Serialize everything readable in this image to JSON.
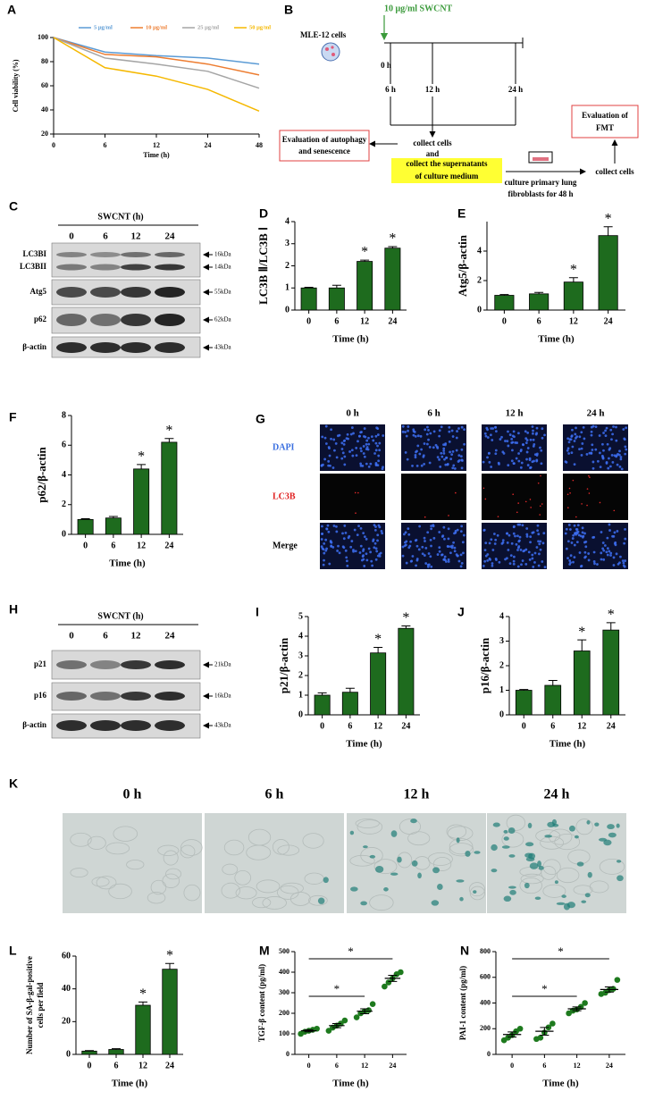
{
  "chart_data": [
    {
      "type": "line",
      "label": "A",
      "x_label": "Time (h)",
      "y_label": "Cell viability (%)",
      "categories": [
        "0",
        "6",
        "12",
        "24",
        "48"
      ],
      "series": [
        {
          "name": "5 μg/ml",
          "color": "#5b9bd5",
          "values": [
            100,
            88,
            85,
            83,
            78
          ]
        },
        {
          "name": "10 μg/ml",
          "color": "#ed7d31",
          "values": [
            100,
            86,
            84,
            78,
            69
          ]
        },
        {
          "name": "25 μg/ml",
          "color": "#a5a5a5",
          "values": [
            100,
            83,
            78,
            72,
            58
          ]
        },
        {
          "name": "50 μg/ml",
          "color": "#f5b800",
          "values": [
            100,
            75,
            68,
            57,
            39
          ]
        }
      ],
      "ylim": [
        20,
        100
      ],
      "yticks": [
        20,
        40,
        60,
        80,
        100
      ]
    },
    {
      "type": "bar",
      "label": "D",
      "x_label": "Time (h)",
      "y_label": "LC3B Ⅱ/LC3B Ⅰ",
      "categories": [
        "0",
        "6",
        "12",
        "24"
      ],
      "values": [
        1.0,
        1.0,
        2.2,
        2.8
      ],
      "errors": [
        0.03,
        0.12,
        0.06,
        0.07
      ],
      "value_annotations": [
        null,
        null,
        "*",
        "*"
      ],
      "color": "#1e6b1e",
      "ylim": [
        0,
        4
      ],
      "yticks": [
        0,
        1,
        2,
        3,
        4
      ]
    },
    {
      "type": "bar",
      "label": "E",
      "x_label": "Time (h)",
      "y_label": "Atg5/β-actin",
      "categories": [
        "0",
        "6",
        "12",
        "24"
      ],
      "values": [
        1.0,
        1.1,
        1.9,
        5.05
      ],
      "errors": [
        0.05,
        0.1,
        0.3,
        0.6
      ],
      "value_annotations": [
        null,
        null,
        "*",
        "*"
      ],
      "color": "#1e6b1e",
      "ylim": [
        0,
        6
      ],
      "yticks": [
        0,
        2,
        4
      ]
    },
    {
      "type": "bar",
      "label": "F",
      "x_label": "Time (h)",
      "y_label": "p62/β-actin",
      "categories": [
        "0",
        "6",
        "12",
        "24"
      ],
      "values": [
        1.0,
        1.1,
        4.4,
        6.2
      ],
      "errors": [
        0.05,
        0.1,
        0.3,
        0.25
      ],
      "value_annotations": [
        null,
        null,
        "*",
        "*"
      ],
      "color": "#1e6b1e",
      "ylim": [
        0,
        8
      ],
      "yticks": [
        0,
        2,
        4,
        6,
        8
      ]
    },
    {
      "type": "bar",
      "label": "I",
      "x_label": "Time (h)",
      "y_label": "p21/β-actin",
      "categories": [
        "0",
        "6",
        "12",
        "24"
      ],
      "values": [
        1.0,
        1.15,
        3.15,
        4.4
      ],
      "errors": [
        0.12,
        0.2,
        0.28,
        0.12
      ],
      "value_annotations": [
        null,
        null,
        "*",
        "*"
      ],
      "color": "#1e6b1e",
      "ylim": [
        0,
        5
      ],
      "yticks": [
        0,
        1,
        2,
        3,
        4,
        5
      ]
    },
    {
      "type": "bar",
      "label": "J",
      "x_label": "Time (h)",
      "y_label": "p16/β-actin",
      "categories": [
        "0",
        "6",
        "12",
        "24"
      ],
      "values": [
        1.0,
        1.2,
        2.6,
        3.45
      ],
      "errors": [
        0.03,
        0.2,
        0.45,
        0.3
      ],
      "value_annotations": [
        null,
        null,
        "*",
        "*"
      ],
      "color": "#1e6b1e",
      "ylim": [
        0,
        4
      ],
      "yticks": [
        0,
        1,
        2,
        3,
        4
      ]
    },
    {
      "type": "bar",
      "label": "L",
      "x_label": "Time (h)",
      "y_label": [
        "Number of SA-β-gal-positive",
        "cells per field"
      ],
      "categories": [
        "0",
        "6",
        "12",
        "24"
      ],
      "values": [
        2,
        3,
        30,
        52
      ],
      "errors": [
        0.3,
        0.5,
        2,
        3.5
      ],
      "value_annotations": [
        null,
        null,
        "*",
        "*"
      ],
      "color": "#1e6b1e",
      "ylim": [
        0,
        60
      ],
      "yticks": [
        0,
        20,
        40,
        60
      ]
    },
    {
      "type": "dotplot",
      "label": "M",
      "x_label": "Time (h)",
      "y_label": "TGF-β content (pg/ml)",
      "categories": [
        "0",
        "6",
        "12",
        "24"
      ],
      "points": [
        [
          100,
          110,
          115,
          120,
          125
        ],
        [
          115,
          130,
          140,
          150,
          165
        ],
        [
          180,
          200,
          210,
          215,
          245
        ],
        [
          330,
          350,
          370,
          390,
          400
        ]
      ],
      "means": [
        115,
        140,
        210,
        370
      ],
      "errors": [
        5,
        10,
        12,
        15
      ],
      "color": "#1e7a1e",
      "comparisons": [
        {
          "between": [
            "0",
            "24"
          ],
          "label": "*"
        },
        {
          "between": [
            "0",
            "12"
          ],
          "label": "*"
        }
      ],
      "ylim": [
        0,
        500
      ],
      "yticks": [
        0,
        100,
        200,
        300,
        400,
        500
      ]
    },
    {
      "type": "dotplot",
      "label": "N",
      "x_label": "Time (h)",
      "y_label": "PAI-1 content (pg/ml)",
      "categories": [
        "0",
        "6",
        "12",
        "24"
      ],
      "points": [
        [
          110,
          130,
          150,
          180,
          200
        ],
        [
          120,
          130,
          170,
          210,
          240
        ],
        [
          320,
          340,
          350,
          370,
          400
        ],
        [
          470,
          480,
          500,
          510,
          580
        ]
      ],
      "means": [
        155,
        180,
        355,
        505
      ],
      "errors": [
        20,
        30,
        15,
        20
      ],
      "color": "#1e7a1e",
      "comparisons": [
        {
          "between": [
            "0",
            "24"
          ],
          "label": "*"
        },
        {
          "between": [
            "0",
            "12"
          ],
          "label": "*"
        }
      ],
      "ylim": [
        0,
        800
      ],
      "yticks": [
        0,
        200,
        400,
        600,
        800
      ]
    }
  ],
  "diagram_b": {
    "label": "B",
    "treatment": "10 μg/ml SWCNT",
    "cells": "MLE-12 cells",
    "timepoints": [
      "0 h",
      "6 h",
      "12 h",
      "24 h"
    ],
    "collect": [
      "collect cells",
      "and"
    ],
    "supernatant": [
      "collect the supernatants",
      "of culture medium"
    ],
    "left_box": [
      "Evaluation of autophagy",
      "and senescence"
    ],
    "culture": [
      "culture primary lung",
      "fibroblasts for 48 h"
    ],
    "collect_right": "collect cells",
    "right_box": [
      "Evaluation of",
      "FMT"
    ]
  },
  "blot_c": {
    "label": "C",
    "treatment": "SWCNT (h)",
    "lanes": [
      "0",
      "6",
      "12",
      "24"
    ],
    "rows": [
      {
        "name": "LC3BI",
        "marker": "16kDa"
      },
      {
        "name": "LC3BII",
        "marker": "14kDa"
      },
      {
        "name": "Atg5",
        "marker": "55kDa"
      },
      {
        "name": "p62",
        "marker": "62kDa"
      },
      {
        "name": "β-actin",
        "marker": "43kDa"
      }
    ]
  },
  "image_g": {
    "label": "G",
    "columns": [
      "0 h",
      "6 h",
      "12 h",
      "24 h"
    ],
    "rows": [
      "DAPI",
      "LC3B",
      "Merge"
    ]
  },
  "blot_h": {
    "label": "H",
    "treatment": "SWCNT (h)",
    "lanes": [
      "0",
      "6",
      "12",
      "24"
    ],
    "rows": [
      {
        "name": "p21",
        "marker": "21kDa"
      },
      {
        "name": "p16",
        "marker": "16kDa"
      },
      {
        "name": "β-actin",
        "marker": "43kDa"
      }
    ]
  },
  "image_k": {
    "label": "K",
    "columns": [
      "0 h",
      "6 h",
      "12 h",
      "24 h"
    ]
  }
}
